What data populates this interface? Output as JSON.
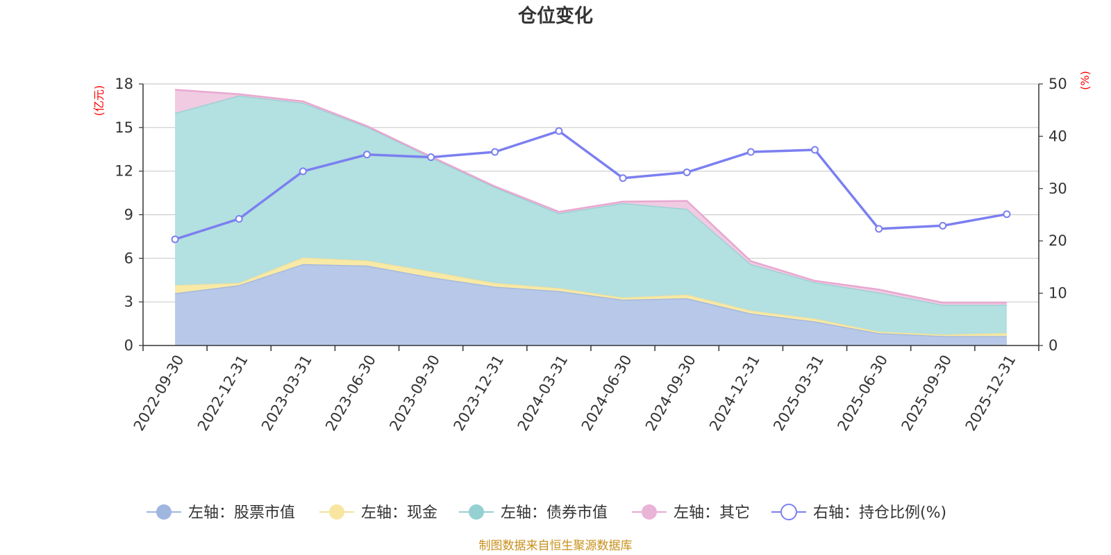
{
  "chart_data": {
    "type": "area",
    "title": "仓位变化",
    "categories": [
      "2022-09-30",
      "2022-12-31",
      "2023-03-31",
      "2023-06-30",
      "2023-09-30",
      "2023-12-31",
      "2024-03-31",
      "2024-06-30",
      "2024-09-30",
      "2024-12-31",
      "2025-03-31",
      "2025-06-30",
      "2025-09-30",
      "2025-12-31"
    ],
    "left_axis": {
      "unit": "(亿元)",
      "min": 0,
      "max": 18,
      "ticks": [
        "0",
        "3",
        "6",
        "9",
        "12",
        "15",
        "18"
      ]
    },
    "right_axis": {
      "unit": "(%)",
      "min": 0,
      "max": 50,
      "ticks": [
        "0",
        "10",
        "20",
        "30",
        "40",
        "50"
      ]
    },
    "stacked_series": [
      {
        "name": "左轴：股票市值",
        "values": [
          3.6,
          4.15,
          5.6,
          5.5,
          4.7,
          4.05,
          3.75,
          3.15,
          3.25,
          2.2,
          1.65,
          0.85,
          0.65,
          0.65
        ]
      },
      {
        "name": "左轴：现金",
        "values": [
          0.55,
          0.15,
          0.45,
          0.35,
          0.4,
          0.25,
          0.2,
          0.15,
          0.25,
          0.2,
          0.2,
          0.1,
          0.1,
          0.2
        ]
      },
      {
        "name": "左轴：债券市值",
        "values": [
          11.85,
          12.9,
          10.65,
          9.2,
          7.85,
          6.6,
          5.15,
          6.5,
          5.9,
          3.2,
          2.5,
          2.7,
          2.05,
          1.95
        ]
      },
      {
        "name": "左轴：其它",
        "values": [
          1.6,
          0.1,
          0.1,
          0.05,
          0.05,
          0.05,
          0.1,
          0.1,
          0.55,
          0.2,
          0.1,
          0.2,
          0.15,
          0.15
        ]
      }
    ],
    "line_series": {
      "name": "右轴：持仓比例(%)",
      "values": [
        20.3,
        24.2,
        33.3,
        36.5,
        36.0,
        37.0,
        41.0,
        32.0,
        33.1,
        37.0,
        37.4,
        22.3,
        22.9,
        25.1
      ]
    },
    "colors": {
      "stock_fill": "#b7c8e8",
      "stock_line": "#9fb6de",
      "stock_legend": "#9fb6e0",
      "cash_fill": "#f8e9a6",
      "cash_line": "#f3e19a",
      "cash_legend": "#f8e5a0",
      "bond_fill": "#b3e0e0",
      "bond_line": "#95cfd3",
      "bond_legend": "#95d1d3",
      "other_fill": "#f0cbe2",
      "other_line": "#e7a8d0",
      "other_legend": "#e8b4d8",
      "ratio_line": "#7b7ff0",
      "grid": "#cccccc",
      "axis": "#333333"
    },
    "legend_position": "bottom",
    "grid": true
  },
  "footer": {
    "source": "制图数据来自恒生聚源数据库"
  }
}
